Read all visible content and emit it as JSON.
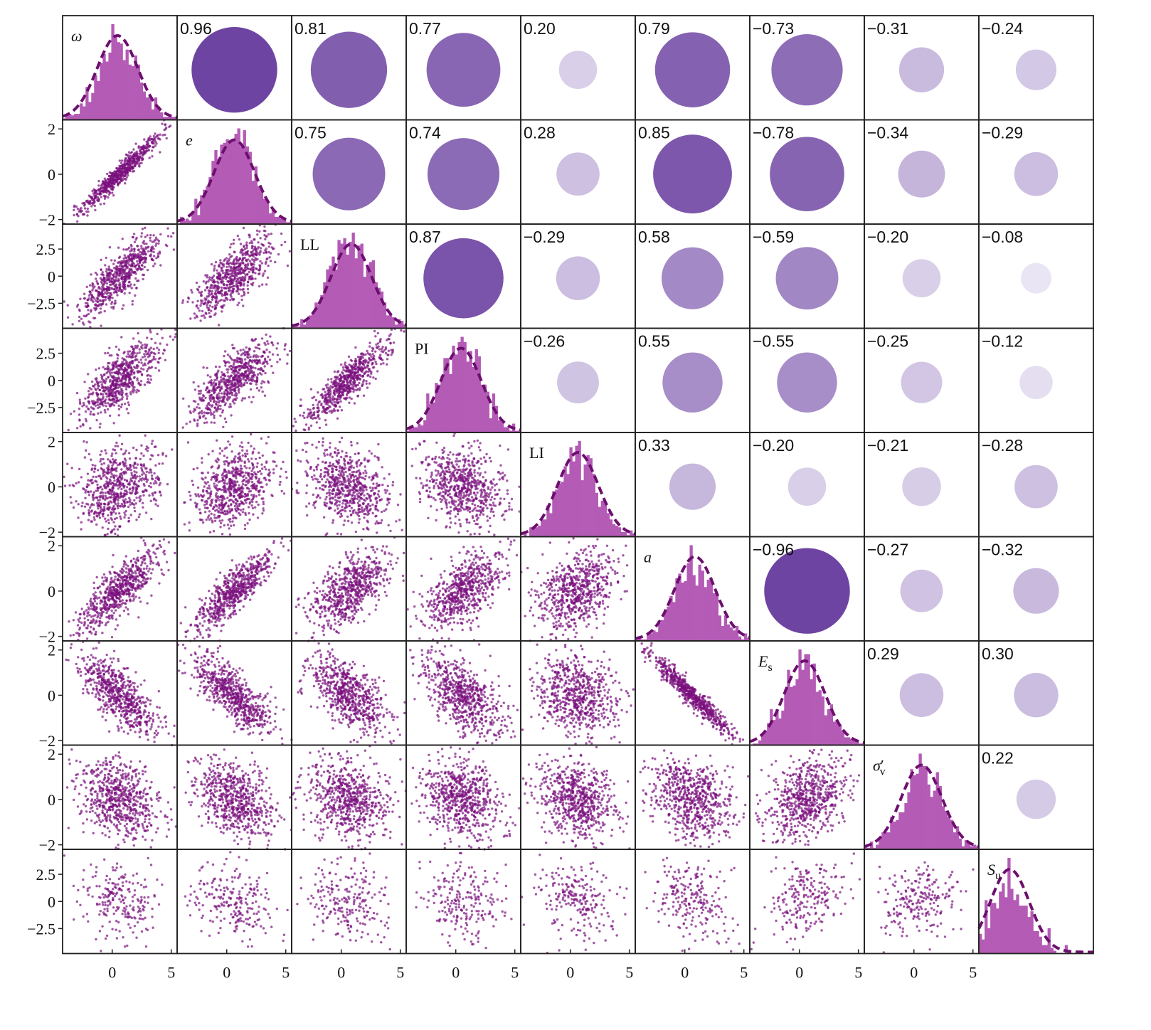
{
  "chart_data": {
    "type": "scatter",
    "subtype": "pair-plot correlation matrix",
    "variables": [
      "ω",
      "e",
      "LL",
      "PI",
      "LI",
      "a",
      "E_s",
      "σ'_v",
      "S_u"
    ],
    "variable_labels": [
      {
        "main": "ω",
        "sub": "",
        "prime": ""
      },
      {
        "main": "e",
        "sub": "",
        "prime": ""
      },
      {
        "main": "LL",
        "sub": "",
        "prime": ""
      },
      {
        "main": "PI",
        "sub": "",
        "prime": ""
      },
      {
        "main": "LI",
        "sub": "",
        "prime": ""
      },
      {
        "main": "a",
        "sub": "",
        "prime": ""
      },
      {
        "main": "E",
        "sub": "s",
        "prime": ""
      },
      {
        "main": "σ",
        "sub": "v",
        "prime": "′"
      },
      {
        "main": "S",
        "sub": "u",
        "prime": ""
      }
    ],
    "correlations": [
      [
        null,
        0.96,
        0.81,
        0.77,
        0.2,
        0.79,
        -0.73,
        -0.31,
        -0.24
      ],
      [
        0.96,
        null,
        0.75,
        0.74,
        0.28,
        0.85,
        -0.78,
        -0.34,
        -0.29
      ],
      [
        0.81,
        0.75,
        null,
        0.87,
        -0.29,
        0.58,
        -0.59,
        -0.2,
        -0.08
      ],
      [
        0.77,
        0.74,
        0.87,
        null,
        -0.26,
        0.55,
        -0.55,
        -0.25,
        -0.12
      ],
      [
        0.2,
        0.28,
        -0.29,
        -0.26,
        null,
        0.33,
        -0.2,
        -0.21,
        -0.28
      ],
      [
        0.79,
        0.85,
        0.58,
        0.55,
        0.33,
        null,
        -0.96,
        -0.27,
        -0.32
      ],
      [
        -0.73,
        -0.78,
        -0.59,
        -0.55,
        -0.2,
        -0.96,
        null,
        0.29,
        0.3
      ],
      [
        -0.31,
        -0.34,
        -0.2,
        -0.25,
        -0.21,
        -0.27,
        0.29,
        null,
        0.22
      ],
      [
        -0.24,
        -0.29,
        -0.08,
        -0.12,
        -0.28,
        -0.32,
        0.3,
        0.22,
        null
      ]
    ],
    "upper_triangle": "correlation coefficient with circle (size and color by |r|)",
    "diagonal": "histogram with dashed normal fit",
    "lower_triangle": "scatter",
    "x_ticks": [
      "0",
      "5"
    ],
    "xlim": [
      -4.2,
      5.5
    ],
    "row_y_ticks": [
      [],
      [
        "2",
        "0",
        "−2"
      ],
      [
        "2.5",
        "0",
        "−2.5"
      ],
      [
        "2.5",
        "0",
        "−2.5"
      ],
      [
        "2",
        "0",
        "−2"
      ],
      [
        "2",
        "0",
        "−2"
      ],
      [
        "2",
        "0",
        "−2"
      ],
      [
        "2",
        "0",
        "−2"
      ],
      [
        "2.5",
        "0",
        "−2.5"
      ]
    ],
    "row_y_tick_values": [
      [],
      [
        2,
        0,
        -2
      ],
      [
        2.5,
        0,
        -2.5
      ],
      [
        2.5,
        0,
        -2.5
      ],
      [
        2,
        0,
        -2
      ],
      [
        2,
        0,
        -2
      ],
      [
        2,
        0,
        -2
      ],
      [
        2,
        0,
        -2
      ],
      [
        2.5,
        0,
        -2.5
      ]
    ],
    "row_ylim": [
      [
        -2.3,
        2.3
      ],
      [
        -2.2,
        2.4
      ],
      [
        -4.8,
        4.8
      ],
      [
        -4.8,
        4.8
      ],
      [
        -2.2,
        2.4
      ],
      [
        -2.2,
        2.4
      ],
      [
        -2.2,
        2.4
      ],
      [
        -2.2,
        2.4
      ],
      [
        -4.8,
        4.8
      ]
    ],
    "grid": false,
    "legend": "none",
    "colors": {
      "points": "#7b0f7d",
      "histogram": "#b45bb6",
      "fit_line": "#6d0f6f",
      "circle_low": "#f5f4fb",
      "circle_high": "#6e44a2",
      "frame": "#222222"
    }
  }
}
